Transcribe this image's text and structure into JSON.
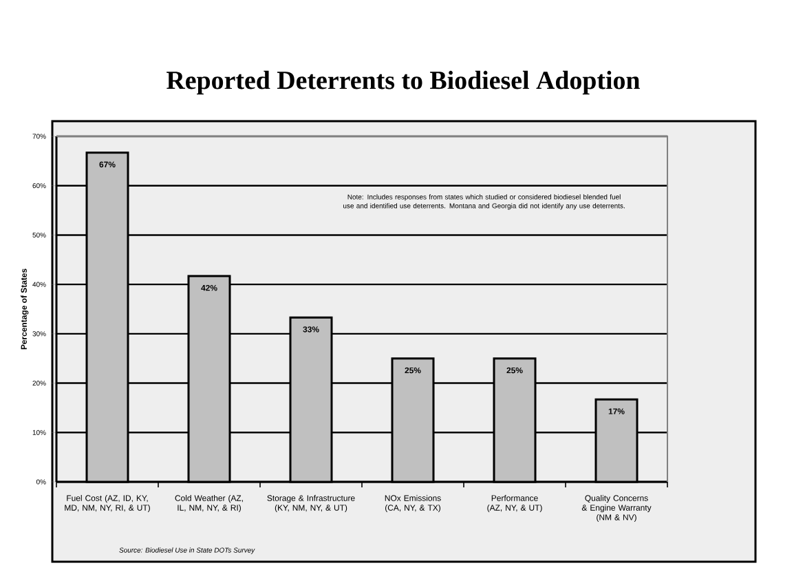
{
  "chart_data": {
    "type": "bar",
    "title": "Reported Deterrents to Biodiesel Adoption",
    "ylabel": "Percentage of States",
    "categories": [
      "Fuel Cost (AZ, ID, KY, MD, NM, NY, RI, & UT)",
      "Cold Weather (AZ, IL, NM, NY, & RI)",
      "Storage & Infrastructure (KY, NM, NY, & UT)",
      "NOx Emissions (CA, NY, & TX)",
      "Performance (AZ, NY, & UT)",
      "Quality Concerns & Engine Warranty (NM & NV)"
    ],
    "values": [
      66.7,
      41.7,
      33.3,
      25,
      25,
      16.7
    ],
    "value_labels": [
      "67%",
      "42%",
      "33%",
      "25%",
      "25%",
      "17%"
    ],
    "color": "#c0c0c0",
    "ylim": [
      0,
      70
    ],
    "yticks": [
      {
        "value": 0,
        "label": "0%"
      },
      {
        "value": 10,
        "label": "10%"
      },
      {
        "value": 20,
        "label": "20%"
      },
      {
        "value": 30,
        "label": "30%"
      },
      {
        "value": 40,
        "label": "40%"
      },
      {
        "value": 50,
        "label": "50%"
      },
      {
        "value": 60,
        "label": "60%"
      },
      {
        "value": 70,
        "label": "70%"
      }
    ],
    "grid": "y",
    "annotations": [
      "Note:  Includes responses from states which studied or considered biodiesel blended fuel use and identified use deterrents. Montana and Georgia did not identify any use deterrents.",
      "Source:  Biodiesel Use in State DOTs Survey"
    ]
  }
}
